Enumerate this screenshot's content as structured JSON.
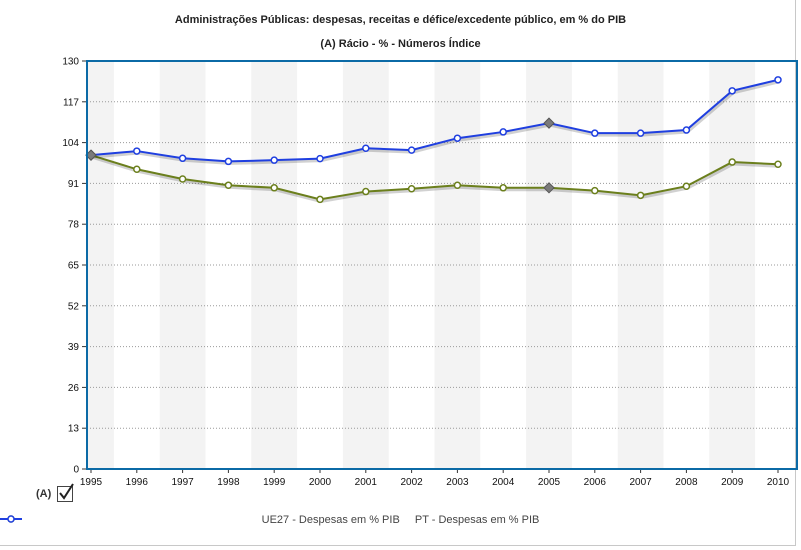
{
  "chart_data": {
    "type": "line",
    "title": "Administrações Públicas: despesas, receitas e défice/excedente público, em % do PIB",
    "subtitle": "(A) Rácio - % - Números Índice",
    "x": [
      "1995",
      "1996",
      "1997",
      "1998",
      "1999",
      "2000",
      "2001",
      "2002",
      "2003",
      "2004",
      "2005",
      "2006",
      "2007",
      "2008",
      "2009",
      "2010"
    ],
    "ylim": [
      0,
      130
    ],
    "yticks": [
      0,
      13,
      26,
      39,
      52,
      65,
      78,
      91,
      104,
      117,
      130
    ],
    "grid": true,
    "legend_position": "bottom",
    "series": [
      {
        "name": "UE27 - Despesas em % PIB",
        "color": "#6b7f1c",
        "values": [
          100,
          95.5,
          92.4,
          90.4,
          89.6,
          85.9,
          88.4,
          89.3,
          90.4,
          89.6,
          89.6,
          88.7,
          87.2,
          90.1,
          97.8,
          97.1
        ]
      },
      {
        "name": "PT - Despesas em % PIB",
        "color": "#1f3fe0",
        "values": [
          100,
          101.3,
          99.0,
          98.0,
          98.4,
          98.9,
          102.2,
          101.6,
          105.4,
          107.4,
          110.2,
          107.0,
          107.0,
          108.0,
          120.5,
          124.0
        ]
      }
    ],
    "highlighted_points": [
      {
        "x": "1995",
        "value": 100
      },
      {
        "x": "2005",
        "series": "UE27 - Despesas em % PIB",
        "value": 89.6
      },
      {
        "x": "2005",
        "series": "PT - Despesas em % PIB",
        "value": 110.2
      }
    ]
  },
  "toggle": {
    "label": "(A)",
    "checked": true
  }
}
